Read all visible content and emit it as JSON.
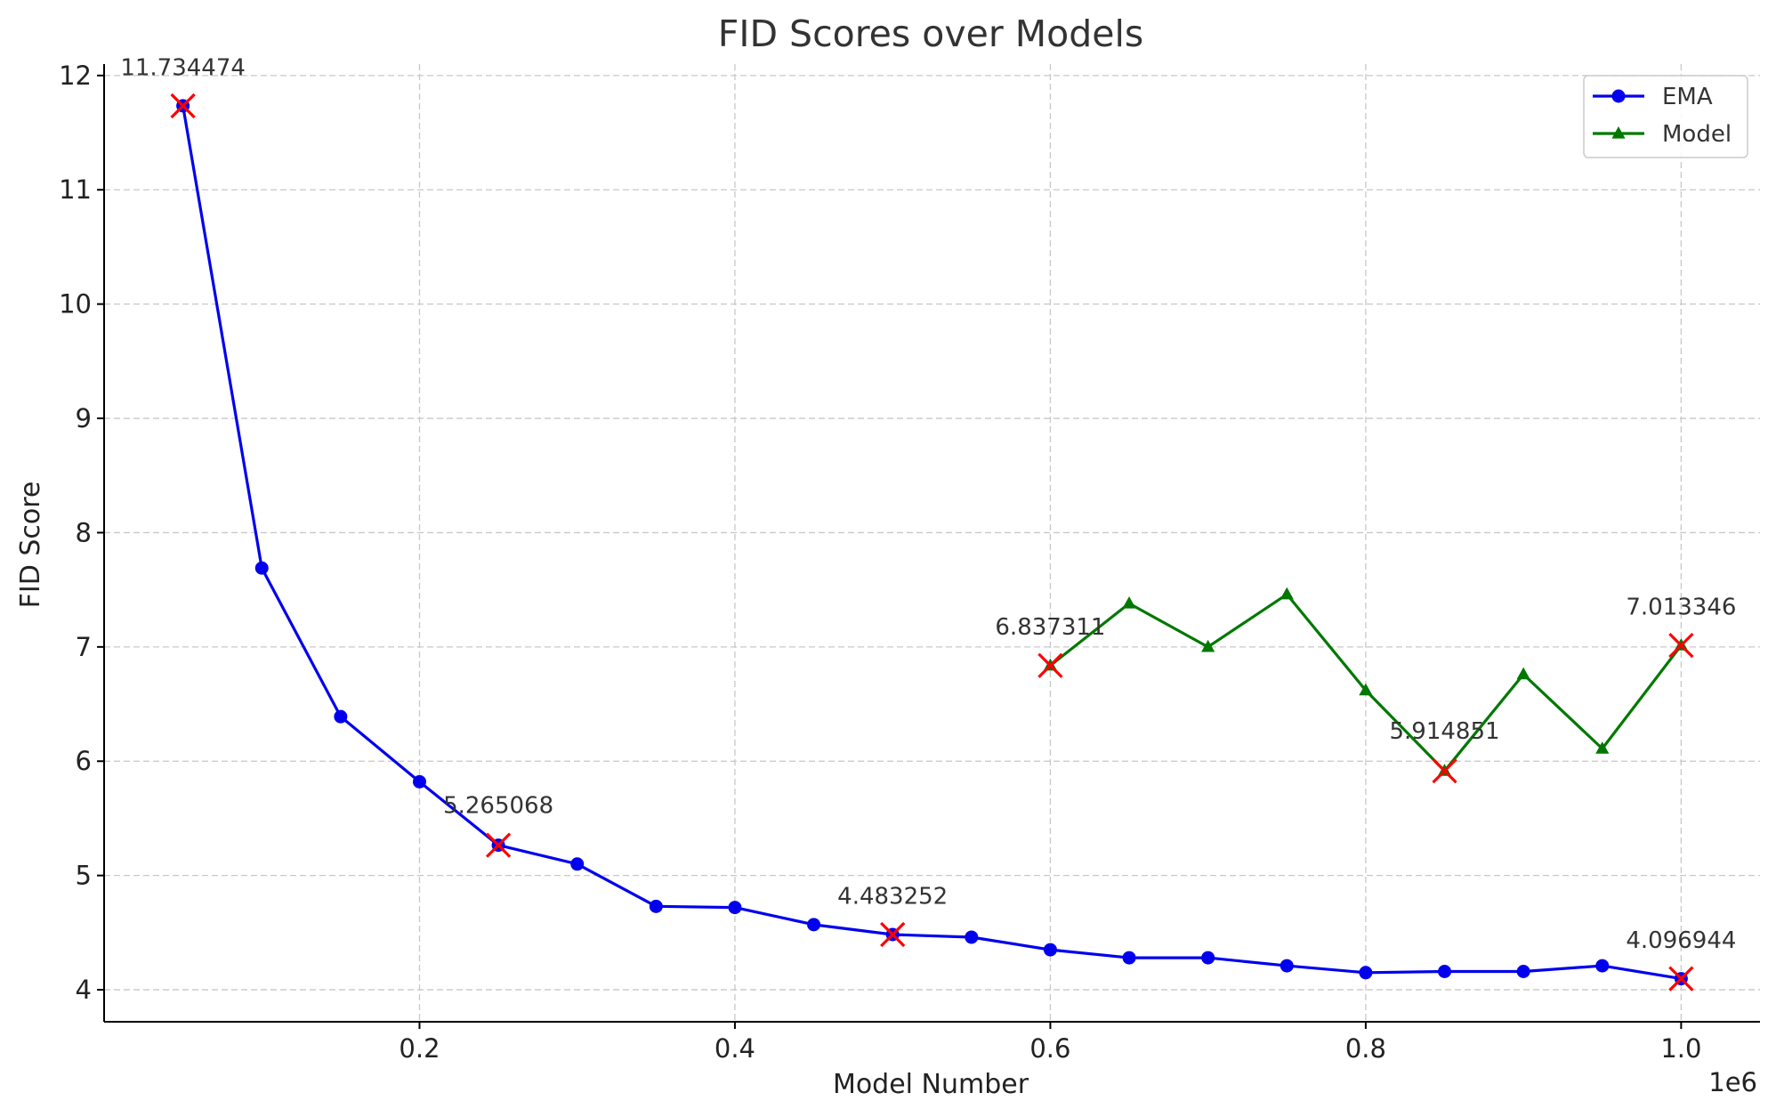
{
  "chart_data": {
    "type": "line",
    "title": "FID Scores over Models",
    "xlabel": "Model Number",
    "ylabel": "FID Score",
    "x_offset_label": "1e6",
    "xlim": [
      0,
      1.05
    ],
    "ylim": [
      3.72,
      12.1
    ],
    "x_ticks": [
      0.2,
      0.4,
      0.6,
      0.8,
      1.0
    ],
    "x_tick_labels": [
      "0.2",
      "0.4",
      "0.6",
      "0.8",
      "1.0"
    ],
    "y_ticks": [
      4,
      5,
      6,
      7,
      8,
      9,
      10,
      11,
      12
    ],
    "y_tick_labels": [
      "4",
      "5",
      "6",
      "7",
      "8",
      "9",
      "10",
      "11",
      "12"
    ],
    "grid": true,
    "legend_position": "top-right",
    "series": [
      {
        "name": "EMA",
        "color": "#0000ee",
        "marker": "circle",
        "x": [
          0.05,
          0.1,
          0.15,
          0.2,
          0.25,
          0.3,
          0.35,
          0.4,
          0.45,
          0.5,
          0.55,
          0.6,
          0.65,
          0.7,
          0.75,
          0.8,
          0.85,
          0.9,
          0.95,
          1.0
        ],
        "y": [
          11.734474,
          7.69,
          6.39,
          5.82,
          5.265068,
          5.1,
          4.73,
          4.72,
          4.57,
          4.483252,
          4.46,
          4.35,
          4.28,
          4.28,
          4.21,
          4.15,
          4.16,
          4.16,
          4.21,
          4.096944
        ]
      },
      {
        "name": "Model",
        "color": "#007800",
        "marker": "triangle",
        "x": [
          0.6,
          0.65,
          0.7,
          0.75,
          0.8,
          0.85,
          0.9,
          0.95,
          1.0
        ],
        "y": [
          6.837311,
          7.38,
          7.0,
          7.46,
          6.62,
          5.914851,
          6.76,
          6.11,
          7.013346
        ]
      }
    ],
    "highlight_color": "#ff0000",
    "annotations": [
      {
        "x": 0.05,
        "y": 11.734474,
        "text": "11.734474",
        "dx": 0.0,
        "dy": 0.27
      },
      {
        "x": 0.25,
        "y": 5.265068,
        "text": "5.265068",
        "dx": 0.0,
        "dy": 0.28
      },
      {
        "x": 0.5,
        "y": 4.483252,
        "text": "4.483252",
        "dx": 0.0,
        "dy": 0.27
      },
      {
        "x": 1.0,
        "y": 4.096944,
        "text": "4.096944",
        "dx": 0.0,
        "dy": 0.27
      },
      {
        "x": 0.6,
        "y": 6.837311,
        "text": "6.837311",
        "dx": 0.0,
        "dy": 0.27
      },
      {
        "x": 0.85,
        "y": 5.914851,
        "text": "5.914851",
        "dx": 0.0,
        "dy": 0.28
      },
      {
        "x": 1.0,
        "y": 7.013346,
        "text": "7.013346",
        "dx": 0.0,
        "dy": 0.27
      }
    ]
  }
}
